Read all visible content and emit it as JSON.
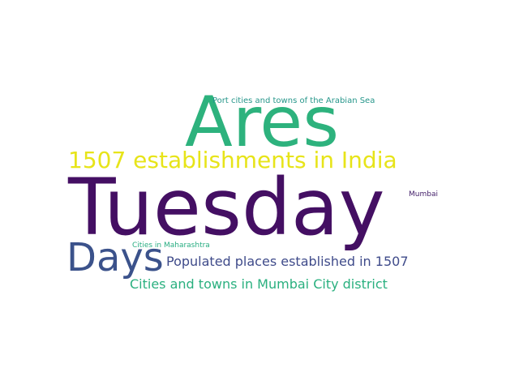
{
  "words": [
    {
      "key": "ares",
      "text": "Ares",
      "color": "#2db27d"
    },
    {
      "key": "port",
      "text": "Port cities and towns of the Arabian Sea",
      "color": "#26968a"
    },
    {
      "key": "1507",
      "text": "1507 establishments in India",
      "color": "#e7e419"
    },
    {
      "key": "tuesday",
      "text": "Tuesday",
      "color": "#440f63"
    },
    {
      "key": "mumbai",
      "text": "Mumbai",
      "color": "#45216b"
    },
    {
      "key": "cities_mh",
      "text": "Cities in Maharashtra",
      "color": "#27ad81"
    },
    {
      "key": "days",
      "text": "Days",
      "color": "#3b528b"
    },
    {
      "key": "populated",
      "text": "Populated places established in 1507",
      "color": "#3f4b8a"
    },
    {
      "key": "cities_mc",
      "text": "Cities and towns in Mumbai City district",
      "color": "#2ab07f"
    }
  ]
}
